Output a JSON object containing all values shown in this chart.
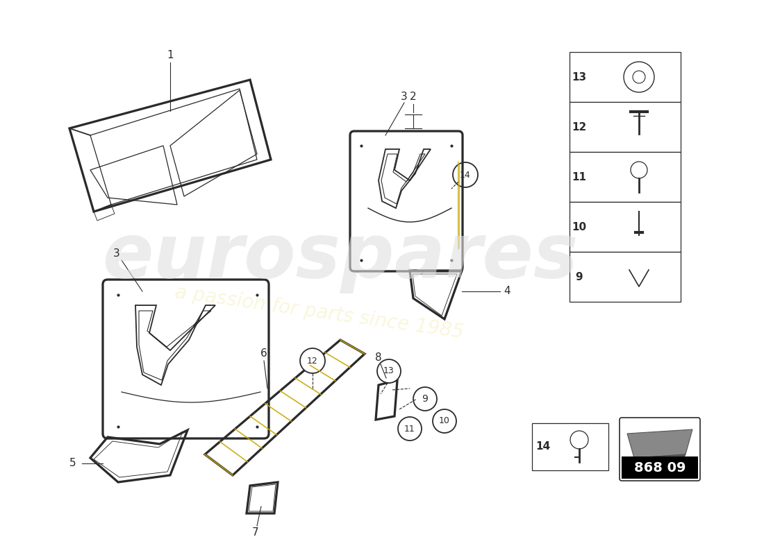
{
  "bg_color": "#ffffff",
  "part_number_box": "868 09",
  "lw": 1.3,
  "gray": "#2a2a2a",
  "yellow": "#c8a800",
  "watermark_color": "#e0e0e0",
  "watermark_yellow": "#f8f4d0"
}
